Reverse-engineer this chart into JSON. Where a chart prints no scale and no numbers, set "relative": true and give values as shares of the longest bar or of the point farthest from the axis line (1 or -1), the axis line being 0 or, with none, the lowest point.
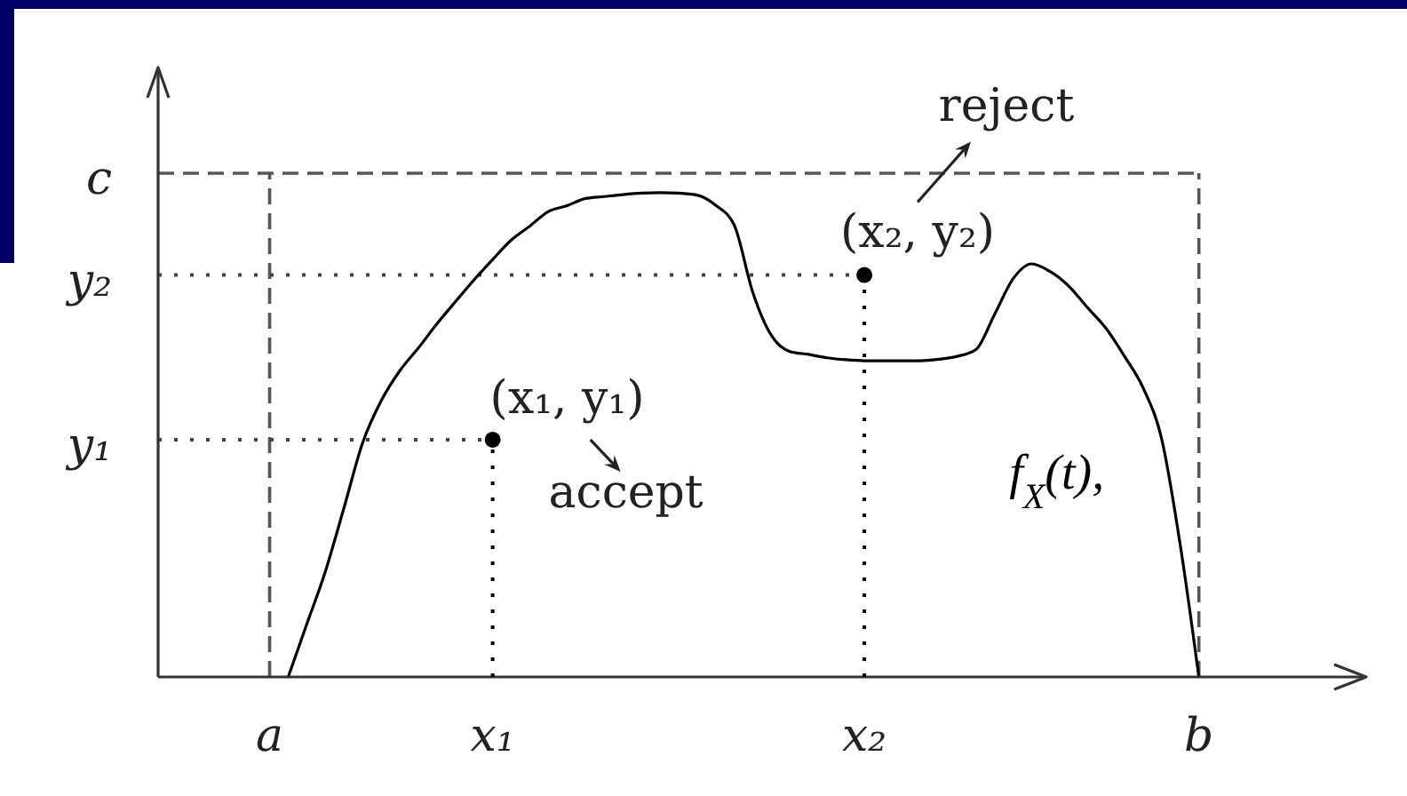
{
  "chart_data": {
    "type": "line",
    "relative": true,
    "categories": [
      null,
      null,
      null,
      null,
      null,
      null,
      "a",
      null,
      null,
      null,
      null,
      null,
      null,
      null,
      null,
      null,
      null,
      null,
      "x₁",
      null,
      null,
      null,
      null,
      null,
      null,
      null,
      null,
      null,
      null,
      null,
      null,
      null,
      null,
      null,
      null,
      null,
      null,
      null,
      "x₂",
      null,
      null,
      null,
      null,
      null,
      null,
      null,
      null,
      null,
      null,
      null,
      null,
      null,
      null,
      null,
      null,
      null,
      "b",
      null,
      null,
      null,
      null,
      null,
      null,
      null,
      null,
      null
    ],
    "series": [
      {
        "name": "f$_{X}$(t),",
        "color": "#000000",
        "values": [
          null,
          null,
          null,
          null,
          null,
          null,
          null,
          0,
          0.109,
          0.218,
          0.349,
          0.483,
          0.57,
          0.632,
          0.679,
          0.729,
          0.775,
          0.82,
          0.862,
          0.902,
          0.931,
          0.961,
          0.973,
          0.988,
          0.992,
          0.996,
          0.999,
          1,
          0.999,
          0.995,
          0.974,
          0.933,
          0.794,
          0.705,
          0.672,
          0.666,
          0.659,
          0.655,
          0.653,
          0.653,
          0.653,
          0.653,
          0.656,
          0.662,
          0.676,
          0.748,
          0.822,
          0.853,
          0.837,
          0.807,
          0.763,
          0.72,
          0.662,
          0.597,
          0.491,
          0.272,
          0,
          null,
          null,
          null,
          null,
          null,
          null,
          null,
          null,
          null
        ]
      },
      {
        "type": "lollipop",
        "color": "#000000",
        "marker": "circle",
        "line_style": "dotted",
        "values": [
          null,
          null,
          null,
          null,
          null,
          null,
          null,
          null,
          null,
          null,
          null,
          null,
          null,
          null,
          null,
          null,
          null,
          null,
          0.49,
          null,
          null,
          null,
          null,
          null,
          null,
          null,
          null,
          null,
          null,
          null,
          null,
          null,
          null,
          null,
          null,
          null,
          null,
          null,
          0.83,
          null,
          null,
          null,
          null,
          null,
          null,
          null,
          null,
          null,
          null,
          null,
          null,
          null,
          null,
          null,
          null,
          null,
          null,
          null,
          null,
          null,
          null,
          null,
          null,
          null,
          null,
          null
        ]
      }
    ],
    "ref_lines": [
      {
        "axis": "y",
        "value": 1.04,
        "label": "c",
        "line_style": "dashed",
        "color": "#555555"
      },
      {
        "axis": "x",
        "value": "a",
        "line_style": "dashed",
        "color": "#555555"
      },
      {
        "axis": "x",
        "value": "b",
        "line_style": "dashed",
        "color": "#555555"
      },
      {
        "axis": "y",
        "value": 0.83,
        "label": "y₂",
        "line_style": "dotted",
        "color": "#444444"
      },
      {
        "axis": "y",
        "value": 0.49,
        "label": "y₁",
        "line_style": "dotted",
        "color": "#444444"
      }
    ],
    "annotations": [
      "(x₁, y₁)",
      "accept",
      "(x₂, y₂)",
      "reject"
    ]
  }
}
